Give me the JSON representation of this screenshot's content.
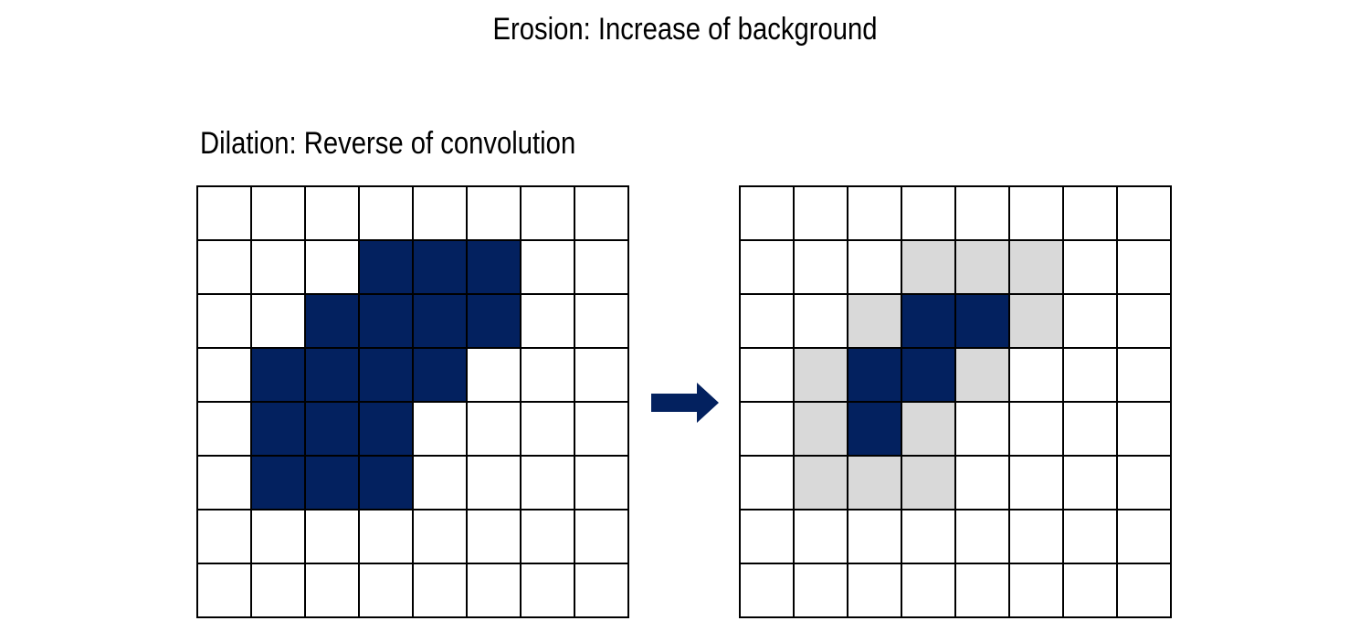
{
  "title": "Erosion: Increase of background",
  "subtitle": "Dilation: Reverse of convolution",
  "colors": {
    "foreground": "#03215f",
    "removed": "#d9d9d9",
    "background": "#ffffff",
    "gridline": "#000000"
  },
  "arrow_icon": "right-arrow-icon",
  "before_grid": [
    [
      0,
      0,
      0,
      0,
      0,
      0,
      0,
      0
    ],
    [
      0,
      0,
      0,
      1,
      1,
      1,
      0,
      0
    ],
    [
      0,
      0,
      1,
      1,
      1,
      1,
      0,
      0
    ],
    [
      0,
      1,
      1,
      1,
      1,
      0,
      0,
      0
    ],
    [
      0,
      1,
      1,
      1,
      0,
      0,
      0,
      0
    ],
    [
      0,
      1,
      1,
      1,
      0,
      0,
      0,
      0
    ],
    [
      0,
      0,
      0,
      0,
      0,
      0,
      0,
      0
    ],
    [
      0,
      0,
      0,
      0,
      0,
      0,
      0,
      0
    ]
  ],
  "after_grid": [
    [
      0,
      0,
      0,
      0,
      0,
      0,
      0,
      0
    ],
    [
      0,
      0,
      0,
      2,
      2,
      2,
      0,
      0
    ],
    [
      0,
      0,
      2,
      1,
      1,
      2,
      0,
      0
    ],
    [
      0,
      2,
      1,
      1,
      2,
      0,
      0,
      0
    ],
    [
      0,
      2,
      1,
      2,
      0,
      0,
      0,
      0
    ],
    [
      0,
      2,
      2,
      2,
      0,
      0,
      0,
      0
    ],
    [
      0,
      0,
      0,
      0,
      0,
      0,
      0,
      0
    ],
    [
      0,
      0,
      0,
      0,
      0,
      0,
      0,
      0
    ]
  ],
  "legend_codes": {
    "0": "background",
    "1": "foreground",
    "2": "removed"
  }
}
